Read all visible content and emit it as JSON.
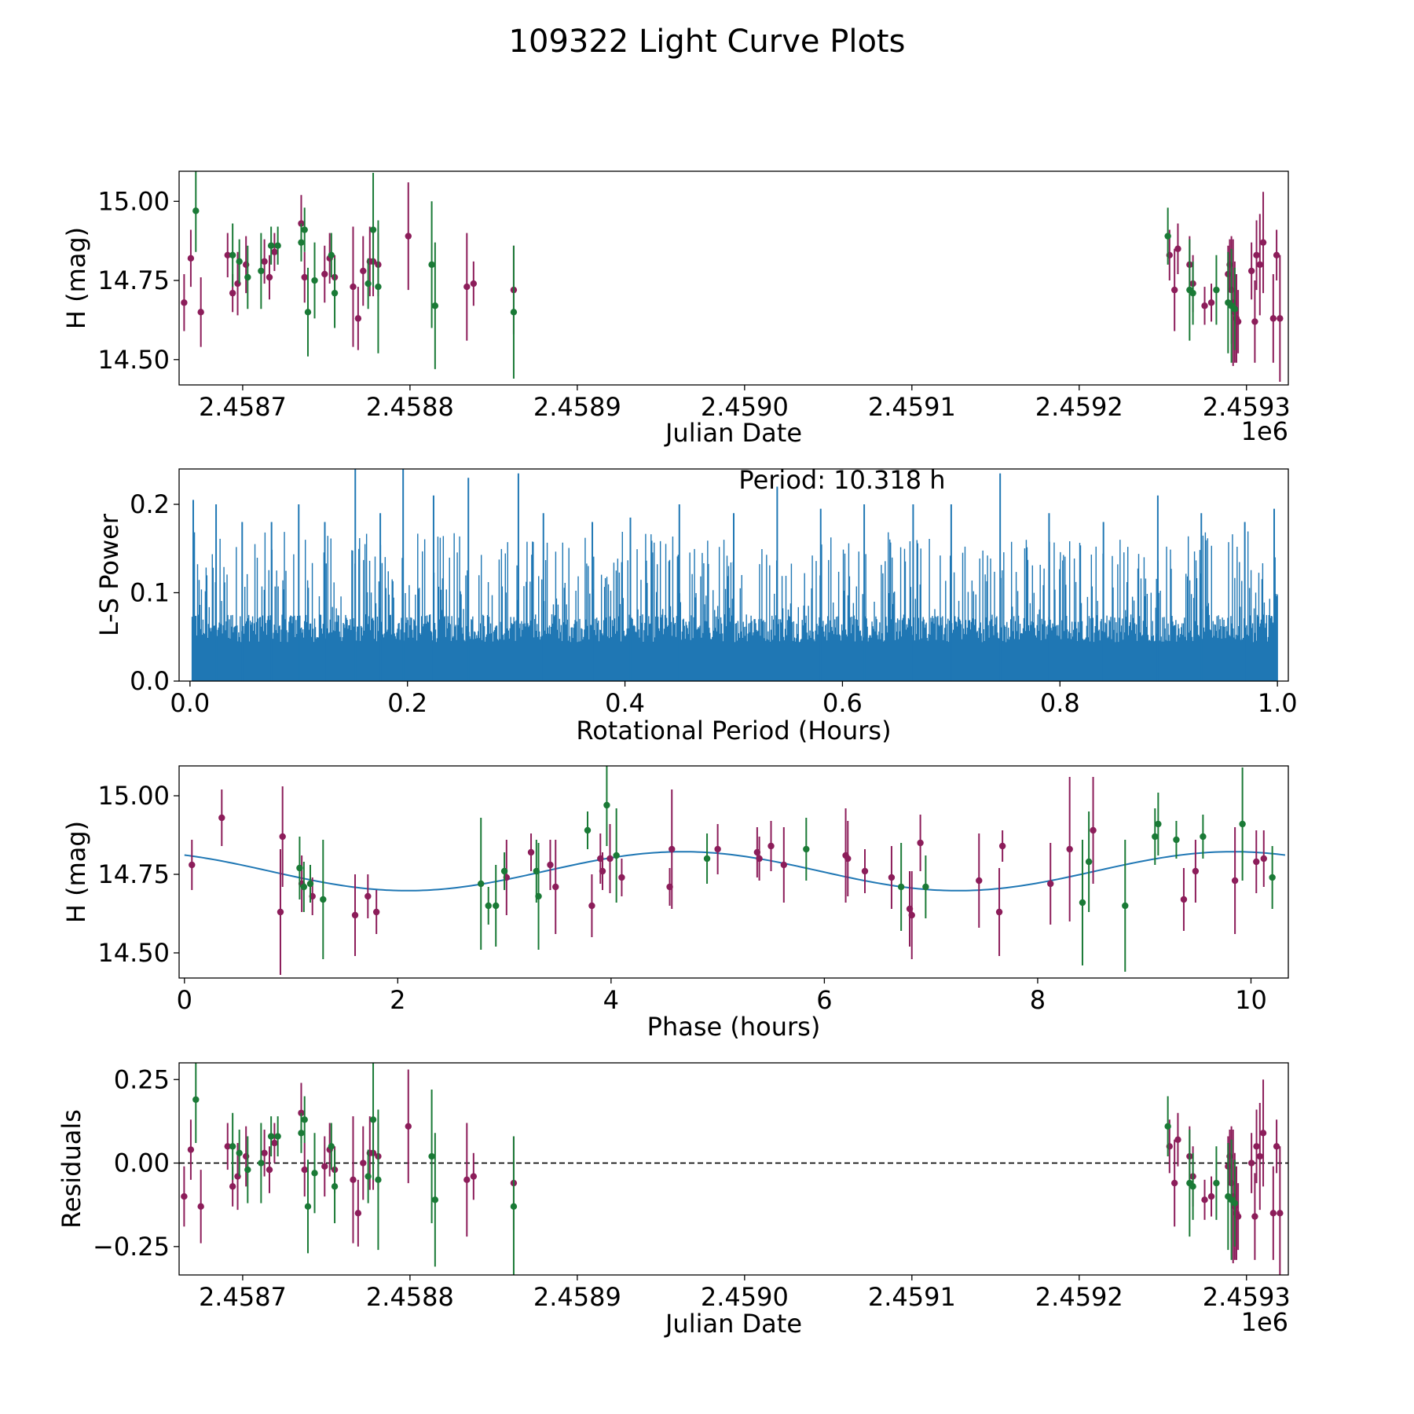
{
  "figure": {
    "title": "109322 Light Curve Plots",
    "colors": {
      "magenta_filter": "#8c1d5a",
      "green_filter": "#1a7a36",
      "model_line": "#1f77b4",
      "periodogram": "#1f77b4",
      "zero_line": "#000000"
    }
  },
  "chart_data": [
    {
      "id": "lightcurve",
      "type": "scatter",
      "xlabel": "Julian Date",
      "ylabel": "H (mag)",
      "offset_label": "1e6",
      "xlim": [
        2.458662,
        2.459325
      ],
      "ylim": [
        14.42,
        15.095
      ],
      "xticks": [
        2.4587,
        2.4588,
        2.4589,
        2.459,
        2.4591,
        2.4592,
        2.4593
      ],
      "xtick_labels": [
        "2.4587",
        "2.4588",
        "2.4589",
        "2.4590",
        "2.4591",
        "2.4592",
        "2.4593"
      ],
      "yticks": [
        14.5,
        14.75,
        15.0
      ],
      "ytick_labels": [
        "14.50",
        "14.75",
        "15.00"
      ],
      "series": [
        {
          "name": "magenta",
          "color": "#8c1d5a",
          "x": [
            2.458665,
            2.458669,
            2.458675,
            2.458691,
            2.458694,
            2.458697,
            2.458702,
            2.458713,
            2.458716,
            2.458719,
            2.458735,
            2.458737,
            2.458749,
            2.458752,
            2.458755,
            2.458766,
            2.458769,
            2.458772,
            2.458776,
            2.458778,
            2.458781,
            2.458799,
            2.458834,
            2.458838,
            2.458862,
            2.459254,
            2.459257,
            2.459259,
            2.459266,
            2.459268,
            2.459275,
            2.459279,
            2.459289,
            2.45929,
            2.459291,
            2.459292,
            2.459293,
            2.459294,
            2.459295,
            2.459303,
            2.459305,
            2.459306,
            2.459308,
            2.45931,
            2.459316,
            2.459318,
            2.45932
          ],
          "y": [
            14.68,
            14.82,
            14.65,
            14.83,
            14.71,
            14.74,
            14.8,
            14.81,
            14.76,
            14.84,
            14.93,
            14.76,
            14.77,
            14.82,
            14.76,
            14.73,
            14.63,
            14.78,
            14.81,
            14.81,
            14.8,
            14.89,
            14.73,
            14.74,
            14.72,
            14.83,
            14.72,
            14.85,
            14.8,
            14.74,
            14.67,
            14.68,
            14.77,
            14.8,
            14.72,
            14.68,
            14.65,
            14.63,
            14.62,
            14.78,
            14.62,
            14.83,
            14.8,
            14.87,
            14.63,
            14.83,
            14.63
          ],
          "yerr": [
            0.09,
            0.09,
            0.11,
            0.07,
            0.06,
            0.1,
            0.09,
            0.07,
            0.07,
            0.06,
            0.09,
            0.08,
            0.09,
            0.08,
            0.07,
            0.19,
            0.1,
            0.11,
            0.11,
            0.11,
            0.1,
            0.17,
            0.17,
            0.07,
            0.14,
            0.08,
            0.13,
            0.08,
            0.09,
            0.09,
            0.06,
            0.06,
            0.09,
            0.08,
            0.17,
            0.2,
            0.16,
            0.14,
            0.1,
            0.09,
            0.13,
            0.11,
            0.16,
            0.16,
            0.14,
            0.08,
            0.2
          ]
        },
        {
          "name": "green",
          "color": "#1a7a36",
          "x": [
            2.458672,
            2.458694,
            2.458698,
            2.458703,
            2.458711,
            2.458717,
            2.458721,
            2.458735,
            2.458737,
            2.458739,
            2.458743,
            2.458753,
            2.458755,
            2.458775,
            2.458778,
            2.458781,
            2.458813,
            2.458815,
            2.458862,
            2.459253,
            2.459266,
            2.459268,
            2.459282,
            2.459289,
            2.459291,
            2.459293
          ],
          "y": [
            14.97,
            14.83,
            14.81,
            14.76,
            14.78,
            14.86,
            14.86,
            14.87,
            14.91,
            14.65,
            14.75,
            14.83,
            14.71,
            14.74,
            14.91,
            14.73,
            14.8,
            14.67,
            14.65,
            14.89,
            14.72,
            14.71,
            14.72,
            14.68,
            14.67,
            14.66
          ],
          "yerr": [
            0.13,
            0.1,
            0.07,
            0.1,
            0.12,
            0.06,
            0.06,
            0.06,
            0.07,
            0.14,
            0.12,
            0.07,
            0.11,
            0.08,
            0.18,
            0.21,
            0.2,
            0.2,
            0.21,
            0.09,
            0.16,
            0.1,
            0.11,
            0.16,
            0.18,
            0.13
          ]
        }
      ]
    },
    {
      "id": "periodogram",
      "type": "line",
      "xlabel": "Rotational Period (Hours)",
      "ylabel": "L-S Power",
      "annotation": "Period: 10.318 h",
      "xlim": [
        -0.01,
        1.01
      ],
      "ylim": [
        0.0,
        0.24
      ],
      "xticks": [
        0.0,
        0.2,
        0.4,
        0.6,
        0.8,
        1.0
      ],
      "xtick_labels": [
        "0.0",
        "0.2",
        "0.4",
        "0.6",
        "0.8",
        "1.0"
      ],
      "yticks": [
        0.0,
        0.1,
        0.2
      ],
      "ytick_labels": [
        "0.0",
        "0.1",
        "0.2"
      ],
      "baseline_power": 0.08,
      "envelope_max_power": 0.24,
      "peaks_x": [
        0.003,
        0.024,
        0.048,
        0.075,
        0.1,
        0.124,
        0.152,
        0.175,
        0.196,
        0.224,
        0.256,
        0.302,
        0.325,
        0.37,
        0.405,
        0.45,
        0.5,
        0.54,
        0.58,
        0.62,
        0.665,
        0.7,
        0.745,
        0.79,
        0.84,
        0.89,
        0.93,
        0.97,
        0.997
      ],
      "peaks_y": [
        0.205,
        0.2,
        0.18,
        0.18,
        0.2,
        0.18,
        0.24,
        0.19,
        0.24,
        0.21,
        0.23,
        0.235,
        0.19,
        0.18,
        0.185,
        0.2,
        0.19,
        0.22,
        0.195,
        0.2,
        0.2,
        0.2,
        0.235,
        0.19,
        0.18,
        0.21,
        0.19,
        0.18,
        0.195
      ]
    },
    {
      "id": "phased",
      "type": "scatter",
      "xlabel": "Phase (hours)",
      "ylabel": "H (mag)",
      "xlim": [
        -0.05,
        10.35
      ],
      "ylim": [
        14.42,
        15.095
      ],
      "xticks": [
        0,
        2,
        4,
        6,
        8,
        10
      ],
      "xtick_labels": [
        "0",
        "2",
        "4",
        "6",
        "8",
        "10"
      ],
      "yticks": [
        14.5,
        14.75,
        15.0
      ],
      "ytick_labels": [
        "14.50",
        "14.75",
        "15.00"
      ],
      "model": {
        "mean": 14.76,
        "amplitude": 0.062,
        "period_hours": 5.159,
        "max_phase": 4.67
      },
      "series": [
        {
          "name": "magenta",
          "color": "#8c1d5a",
          "x": [
            0.07,
            0.35,
            0.9,
            0.92,
            1.1,
            1.2,
            1.6,
            1.72,
            1.8,
            3.02,
            3.25,
            3.43,
            3.48,
            3.82,
            3.9,
            3.92,
            3.99,
            4.1,
            4.55,
            4.57,
            5.0,
            5.37,
            5.39,
            5.5,
            5.62,
            6.2,
            6.22,
            6.38,
            6.63,
            6.8,
            6.82,
            6.9,
            7.45,
            7.64,
            7.67,
            8.12,
            8.3,
            8.52,
            9.37,
            9.48,
            9.85,
            10.05,
            10.12
          ],
          "y": [
            14.78,
            14.93,
            14.63,
            14.87,
            14.72,
            14.68,
            14.62,
            14.68,
            14.63,
            14.74,
            14.82,
            14.78,
            14.71,
            14.65,
            14.8,
            14.76,
            14.8,
            14.74,
            14.71,
            14.83,
            14.83,
            14.82,
            14.8,
            14.84,
            14.78,
            14.81,
            14.8,
            14.76,
            14.74,
            14.64,
            14.62,
            14.85,
            14.73,
            14.63,
            14.84,
            14.72,
            14.83,
            14.89,
            14.67,
            14.76,
            14.73,
            14.79,
            14.8
          ],
          "yerr": [
            0.08,
            0.09,
            0.2,
            0.16,
            0.09,
            0.06,
            0.13,
            0.07,
            0.07,
            0.12,
            0.06,
            0.08,
            0.15,
            0.1,
            0.08,
            0.06,
            0.11,
            0.06,
            0.06,
            0.19,
            0.08,
            0.08,
            0.07,
            0.08,
            0.12,
            0.15,
            0.12,
            0.07,
            0.1,
            0.12,
            0.14,
            0.09,
            0.15,
            0.14,
            0.05,
            0.13,
            0.23,
            0.17,
            0.1,
            0.1,
            0.17,
            0.1,
            0.09
          ]
        },
        {
          "name": "green",
          "color": "#1a7a36",
          "x": [
            1.08,
            1.12,
            1.18,
            1.3,
            2.78,
            2.85,
            2.92,
            3.0,
            3.3,
            3.32,
            3.78,
            3.96,
            4.05,
            4.9,
            5.83,
            6.72,
            6.95,
            8.42,
            8.48,
            8.82,
            9.1,
            9.13,
            9.3,
            9.55,
            9.92,
            10.2
          ],
          "y": [
            14.77,
            14.71,
            14.72,
            14.67,
            14.72,
            14.65,
            14.65,
            14.76,
            14.76,
            14.68,
            14.89,
            14.97,
            14.81,
            14.8,
            14.83,
            14.71,
            14.71,
            14.66,
            14.79,
            14.65,
            14.87,
            14.91,
            14.86,
            14.87,
            14.91,
            14.74
          ]
        }
      ]
    },
    {
      "id": "residuals",
      "type": "scatter",
      "xlabel": "Julian Date",
      "ylabel": "Residuals",
      "offset_label": "1e6",
      "xlim": [
        2.458662,
        2.459325
      ],
      "ylim": [
        -0.335,
        0.3
      ],
      "xticks": [
        2.4587,
        2.4588,
        2.4589,
        2.459,
        2.4591,
        2.4592,
        2.4593
      ],
      "xtick_labels": [
        "2.4587",
        "2.4588",
        "2.4589",
        "2.4590",
        "2.4591",
        "2.4592",
        "2.4593"
      ],
      "yticks": [
        -0.25,
        0.0,
        0.25
      ],
      "ytick_labels": [
        "−0.25",
        "0.00",
        "0.25"
      ],
      "zero_line": 0.0
    }
  ]
}
